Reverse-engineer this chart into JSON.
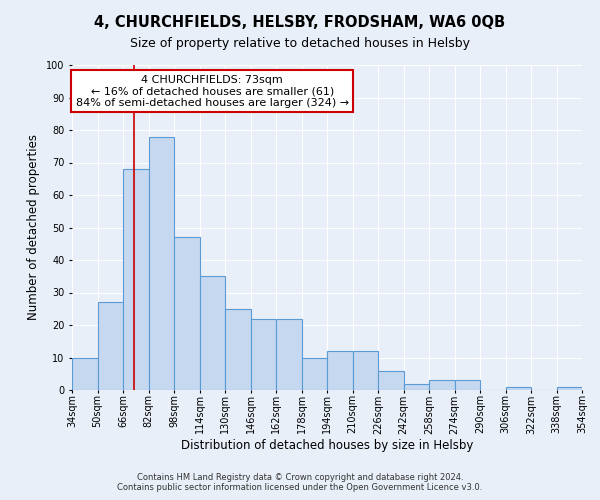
{
  "title": "4, CHURCHFIELDS, HELSBY, FRODSHAM, WA6 0QB",
  "subtitle": "Size of property relative to detached houses in Helsby",
  "xlabel": "Distribution of detached houses by size in Helsby",
  "ylabel": "Number of detached properties",
  "bins_left": [
    34,
    50,
    66,
    82,
    98,
    114,
    130,
    146,
    162,
    178,
    194,
    210,
    226,
    242,
    258,
    274,
    290,
    306,
    322,
    338
  ],
  "bin_width": 16,
  "counts": [
    10,
    27,
    68,
    78,
    47,
    35,
    25,
    22,
    22,
    10,
    12,
    12,
    6,
    2,
    3,
    3,
    0,
    1,
    0,
    1
  ],
  "bar_color": "#c5d8f0",
  "bar_edgecolor": "#5b9bd5",
  "bar_linewidth": 0.8,
  "vline_x": 73,
  "vline_color": "#cc0000",
  "vline_linewidth": 1.2,
  "annotation_title": "4 CHURCHFIELDS: 73sqm",
  "annotation_line1": "← 16% of detached houses are smaller (61)",
  "annotation_line2": "84% of semi-detached houses are larger (324) →",
  "annotation_box_facecolor": "#ffffff",
  "annotation_box_edgecolor": "#cc0000",
  "ylim": [
    0,
    100
  ],
  "yticks": [
    0,
    10,
    20,
    30,
    40,
    50,
    60,
    70,
    80,
    90,
    100
  ],
  "tick_labels": [
    "34sqm",
    "50sqm",
    "66sqm",
    "82sqm",
    "98sqm",
    "114sqm",
    "130sqm",
    "146sqm",
    "162sqm",
    "178sqm",
    "194sqm",
    "210sqm",
    "226sqm",
    "242sqm",
    "258sqm",
    "274sqm",
    "290sqm",
    "306sqm",
    "322sqm",
    "338sqm",
    "354sqm"
  ],
  "footer1": "Contains HM Land Registry data © Crown copyright and database right 2024.",
  "footer2": "Contains public sector information licensed under the Open Government Licence v3.0.",
  "bg_color": "#e8eff8",
  "grid_color": "#ffffff",
  "title_fontsize": 10.5,
  "subtitle_fontsize": 9,
  "axis_label_fontsize": 8.5,
  "tick_fontsize": 7,
  "annotation_fontsize": 8,
  "footer_fontsize": 6
}
